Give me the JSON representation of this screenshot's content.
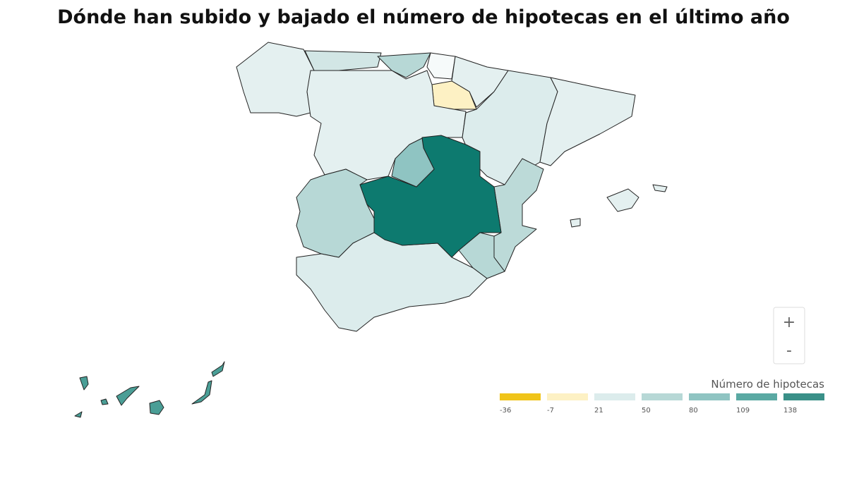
{
  "title": "Dónde han subido y bajado el número de hipotecas en el último año",
  "zoom": {
    "in": "+",
    "out": "-"
  },
  "legend": {
    "title": "Número de hipotecas",
    "bins": [
      {
        "label": "-36",
        "color": "#f0c419"
      },
      {
        "label": "-7",
        "color": "#fdf1c4"
      },
      {
        "label": "21",
        "color": "#dcecec"
      },
      {
        "label": "50",
        "color": "#b7d8d6"
      },
      {
        "label": "80",
        "color": "#8fc4c2"
      },
      {
        "label": "109",
        "color": "#5aa9a3"
      },
      {
        "label": "138",
        "color": "#3a9088"
      }
    ]
  }
}
